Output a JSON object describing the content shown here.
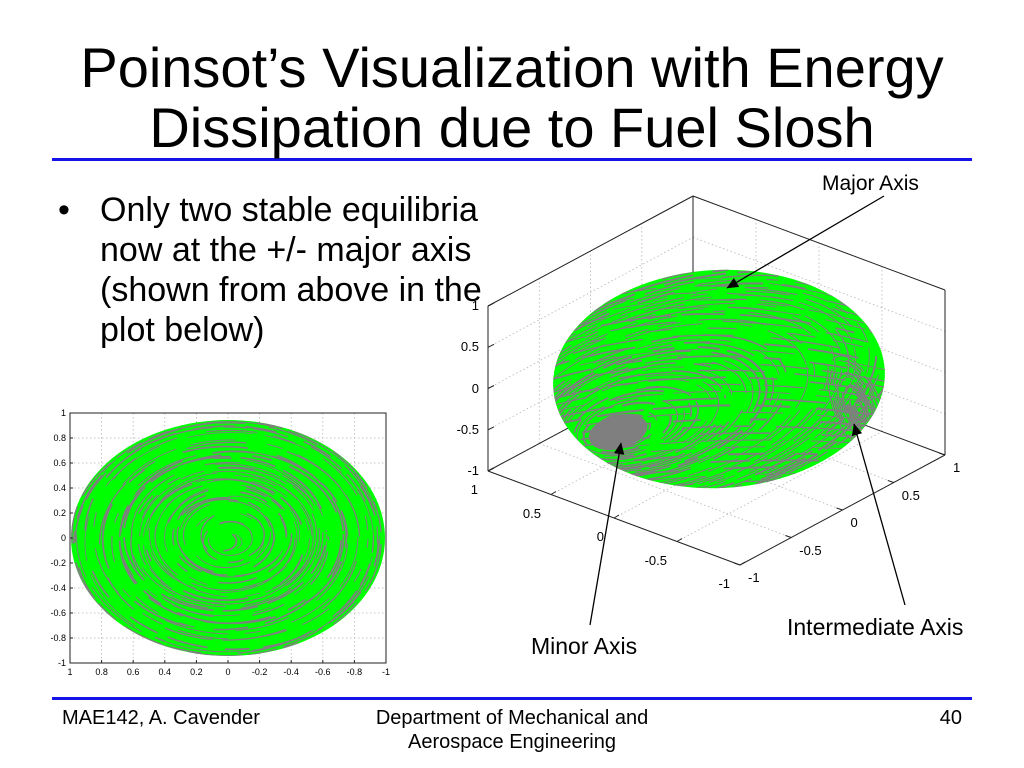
{
  "slide": {
    "title": {
      "line1": "Poinsot’s Visualization with Energy",
      "line2": "Dissipation due to Fuel Slosh"
    },
    "bullet_marker": "•",
    "bullet_lines": [
      "Only two stable equilibria",
      "now at the +/- major axis",
      "(shown from above in the",
      "plot below)"
    ]
  },
  "top_view_plot": {
    "y_tick_labels": [
      "1",
      "0.8",
      "0.6",
      "0.4",
      "0.2",
      "0",
      "-0.2",
      "-0.4",
      "-0.6",
      "-0.8",
      "-1"
    ],
    "x_tick_labels": [
      "1",
      "0.8",
      "0.6",
      "0.4",
      "0.2",
      "0",
      "-0.2",
      "-0.4",
      "-0.6",
      "-0.8",
      "-1"
    ]
  },
  "perspective_plot": {
    "z_tick_labels": [
      "1",
      "0.5",
      "0",
      "-0.5",
      "-1"
    ],
    "front_left_tick_labels": [
      "1",
      "0.5",
      "0",
      "-0.5",
      "-1"
    ],
    "front_right_tick_labels": [
      "-1",
      "-0.5",
      "0",
      "0.5",
      "1"
    ],
    "annotations": {
      "major_axis": "Major Axis",
      "minor_axis": "Minor Axis",
      "intermediate_axis": "Intermediate Axis"
    }
  },
  "footer": {
    "author": "MAE142, A. Cavender",
    "department_line1": "Department of Mechanical and",
    "department_line2": "Aerospace Engineering",
    "page_number": "40"
  },
  "colors": {
    "rule_blue": "#1414e6",
    "surface_green": "#00ff00",
    "streak_gray": "#7f7f7f",
    "text": "#000000"
  }
}
